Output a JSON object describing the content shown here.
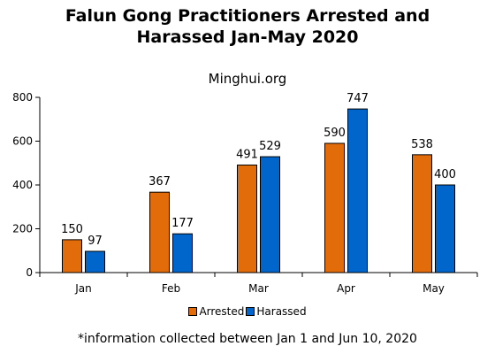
{
  "chart_data": {
    "type": "bar",
    "title_lines": [
      "Falun Gong Practitioners Arrested and",
      "Harassed Jan-May 2020"
    ],
    "subtitle": "Minghui.org",
    "categories": [
      "Jan",
      "Feb",
      "Mar",
      "Apr",
      "May"
    ],
    "series": [
      {
        "name": "Arrested",
        "color": "#E36C0A",
        "values": [
          150,
          367,
          491,
          590,
          538
        ]
      },
      {
        "name": "Harassed",
        "color": "#0066CC",
        "values": [
          97,
          177,
          529,
          747,
          400
        ]
      }
    ],
    "ylim": [
      0,
      800
    ],
    "yticks": [
      0,
      200,
      400,
      600,
      800
    ],
    "grid": false,
    "legend_position": "bottom",
    "footnote": "*information collected between Jan 1 and Jun 10, 2020"
  }
}
